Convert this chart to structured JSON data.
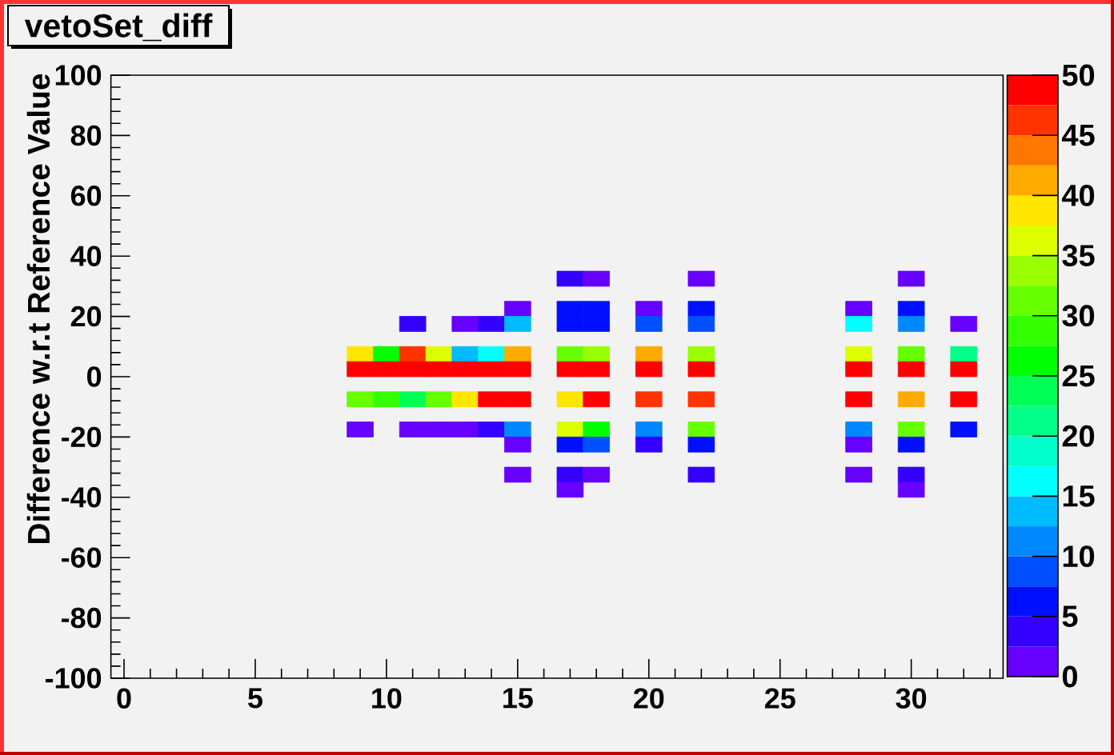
{
  "chart_data": {
    "type": "scatter",
    "marker": "square",
    "title": "vetoSet_diff",
    "ylabel": "Difference w.r.t Reference Value",
    "xlim": [
      -0.5,
      33.5
    ],
    "xticks": [
      0,
      5,
      10,
      15,
      20,
      25,
      30
    ],
    "ylim": [
      -100,
      100
    ],
    "yticks": [
      -100,
      -80,
      -60,
      -40,
      -20,
      0,
      20,
      40,
      60,
      80,
      100
    ],
    "clim": [
      0,
      50
    ],
    "cticks": [
      0,
      5,
      10,
      15,
      20,
      25,
      30,
      35,
      40,
      45,
      50
    ],
    "x": [
      17,
      18,
      22,
      30,
      15,
      17,
      18,
      20,
      22,
      28,
      30,
      11,
      13,
      14,
      15,
      17,
      18,
      20,
      22,
      28,
      30,
      32,
      9,
      10,
      11,
      12,
      13,
      14,
      15,
      17,
      18,
      20,
      22,
      28,
      30,
      32,
      9,
      10,
      11,
      12,
      13,
      14,
      15,
      17,
      18,
      20,
      22,
      28,
      30,
      32,
      9,
      10,
      11,
      12,
      13,
      14,
      15,
      17,
      18,
      20,
      22,
      28,
      30,
      32,
      9,
      11,
      12,
      13,
      14,
      15,
      17,
      18,
      20,
      22,
      28,
      30,
      32,
      15,
      17,
      18,
      20,
      22,
      28,
      30,
      15,
      17,
      18,
      22,
      28,
      30,
      17,
      30
    ],
    "values": [
      32.5,
      32.5,
      32.5,
      32.5,
      22.5,
      22.5,
      22.5,
      22.5,
      22.5,
      22.5,
      22.5,
      17.5,
      17.5,
      17.5,
      17.5,
      17.5,
      17.5,
      17.5,
      17.5,
      17.5,
      17.5,
      17.5,
      7.5,
      7.5,
      7.5,
      7.5,
      7.5,
      7.5,
      7.5,
      7.5,
      7.5,
      7.5,
      7.5,
      7.5,
      7.5,
      7.5,
      2.5,
      2.5,
      2.5,
      2.5,
      2.5,
      2.5,
      2.5,
      2.5,
      2.5,
      2.5,
      2.5,
      2.5,
      2.5,
      2.5,
      -7.5,
      -7.5,
      -7.5,
      -7.5,
      -7.5,
      -7.5,
      -7.5,
      -7.5,
      -7.5,
      -7.5,
      -7.5,
      -7.5,
      -7.5,
      -7.5,
      -17.5,
      -17.5,
      -17.5,
      -17.5,
      -17.5,
      -17.5,
      -17.5,
      -17.5,
      -17.5,
      -17.5,
      -17.5,
      -17.5,
      -17.5,
      -22.5,
      -22.5,
      -22.5,
      -22.5,
      -22.5,
      -22.5,
      -22.5,
      -32.5,
      -32.5,
      -32.5,
      -32.5,
      -32.5,
      -32.5,
      -37.5,
      -37.5
    ],
    "cvalues": [
      4,
      1,
      1,
      1,
      1,
      6,
      6,
      1,
      6,
      1,
      6,
      4,
      1,
      4,
      14,
      6,
      6,
      9,
      9,
      16,
      11,
      1,
      39,
      26,
      46,
      36,
      14,
      16,
      41,
      31,
      34,
      41,
      34,
      36,
      31,
      21,
      49,
      49,
      49,
      49,
      49,
      49,
      49,
      49,
      49,
      49,
      49,
      49,
      49,
      49,
      31,
      29,
      24,
      31,
      39,
      49,
      49,
      39,
      49,
      46,
      46,
      49,
      41,
      49,
      1,
      1,
      1,
      1,
      4,
      11,
      36,
      26,
      11,
      31,
      11,
      31,
      6,
      1,
      6,
      9,
      4,
      6,
      1,
      6,
      1,
      4,
      1,
      4,
      1,
      4,
      1,
      1
    ]
  }
}
